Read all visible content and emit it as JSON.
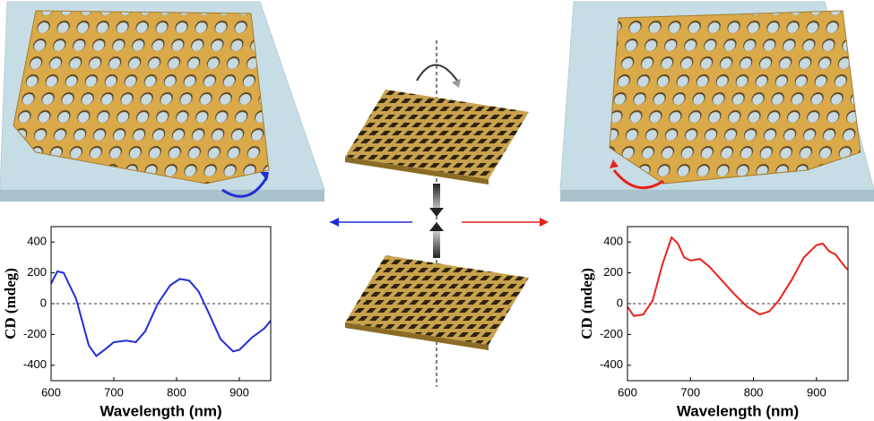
{
  "chart_data": [
    {
      "type": "line",
      "xlabel": "Wavelength (nm)",
      "ylabel": "CD (mdeg)",
      "color": "#1f2fd6",
      "x": [
        600,
        610,
        620,
        640,
        660,
        672,
        685,
        700,
        720,
        735,
        750,
        770,
        790,
        805,
        820,
        835,
        850,
        870,
        890,
        900,
        920,
        940,
        950
      ],
      "values": [
        130,
        210,
        200,
        30,
        -270,
        -340,
        -300,
        -250,
        -240,
        -250,
        -180,
        0,
        120,
        160,
        150,
        80,
        -50,
        -230,
        -310,
        -300,
        -220,
        -160,
        -110
      ],
      "xlim": [
        600,
        950
      ],
      "ylim": [
        -500,
        500
      ],
      "xticks": [
        600,
        700,
        800,
        900
      ],
      "yticks": [
        -400,
        -200,
        0,
        200,
        400
      ],
      "zero_line": true
    },
    {
      "type": "line",
      "xlabel": "Wavelength (nm)",
      "ylabel": "CD (mdeg)",
      "color": "#e8221c",
      "x": [
        600,
        610,
        625,
        640,
        655,
        670,
        680,
        690,
        700,
        715,
        730,
        750,
        770,
        790,
        810,
        825,
        840,
        860,
        880,
        900,
        910,
        920,
        930,
        945,
        950
      ],
      "values": [
        -20,
        -80,
        -70,
        20,
        250,
        430,
        390,
        300,
        280,
        290,
        240,
        150,
        60,
        -20,
        -70,
        -50,
        20,
        150,
        300,
        380,
        390,
        340,
        320,
        240,
        220
      ],
      "xlim": [
        600,
        950
      ],
      "ylim": [
        -500,
        500
      ],
      "xticks": [
        600,
        700,
        800,
        900
      ],
      "yticks": [
        -400,
        -200,
        0,
        200,
        400
      ],
      "zero_line": true
    }
  ]
}
